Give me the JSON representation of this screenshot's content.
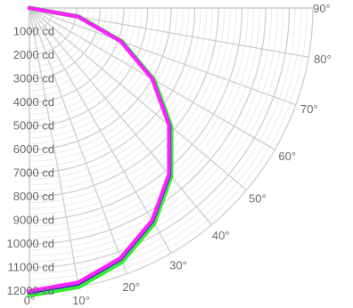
{
  "chart_data": {
    "type": "line",
    "polar": true,
    "r_unit": "cd",
    "r_ticks": [
      1000,
      2000,
      3000,
      4000,
      5000,
      6000,
      7000,
      8000,
      9000,
      10000,
      11000,
      12000
    ],
    "r_tick_labels": [
      "1000 cd",
      "2000 cd",
      "3000 cd",
      "4000 cd",
      "5000 cd",
      "6000 cd",
      "7000 cd",
      "8000 cd",
      "9000 cd",
      "10000 cd",
      "11000 cd",
      "12000 cd"
    ],
    "angle_ticks": [
      0,
      10,
      20,
      30,
      40,
      50,
      60,
      70,
      80,
      90
    ],
    "angle_tick_labels": [
      "0°",
      "10°",
      "20°",
      "30°",
      "40°",
      "50°",
      "60°",
      "70°",
      "80°",
      "90°"
    ],
    "rlim": [
      0,
      12000
    ],
    "angle_range": [
      0,
      90
    ],
    "grid": true,
    "series": [
      {
        "color": "#33ee33",
        "x": [
          0,
          10,
          20,
          30,
          40,
          50,
          60,
          70,
          80,
          90
        ],
        "values": [
          12180,
          12000,
          11450,
          10550,
          9330,
          7830,
          6090,
          4160,
          2110,
          0
        ]
      },
      {
        "color": "#2222cc",
        "x": [
          0,
          10,
          20,
          30,
          40,
          50,
          60,
          70,
          80,
          90
        ],
        "values": [
          12050,
          11870,
          11320,
          10430,
          9230,
          7740,
          6020,
          4120,
          2090,
          0
        ]
      },
      {
        "color": "#ff22ff",
        "x": [
          0,
          10,
          20,
          30,
          40,
          50,
          60,
          70,
          80,
          90
        ],
        "values": [
          12000,
          11820,
          11280,
          10390,
          9190,
          7710,
          6000,
          4100,
          2080,
          0
        ]
      }
    ]
  }
}
